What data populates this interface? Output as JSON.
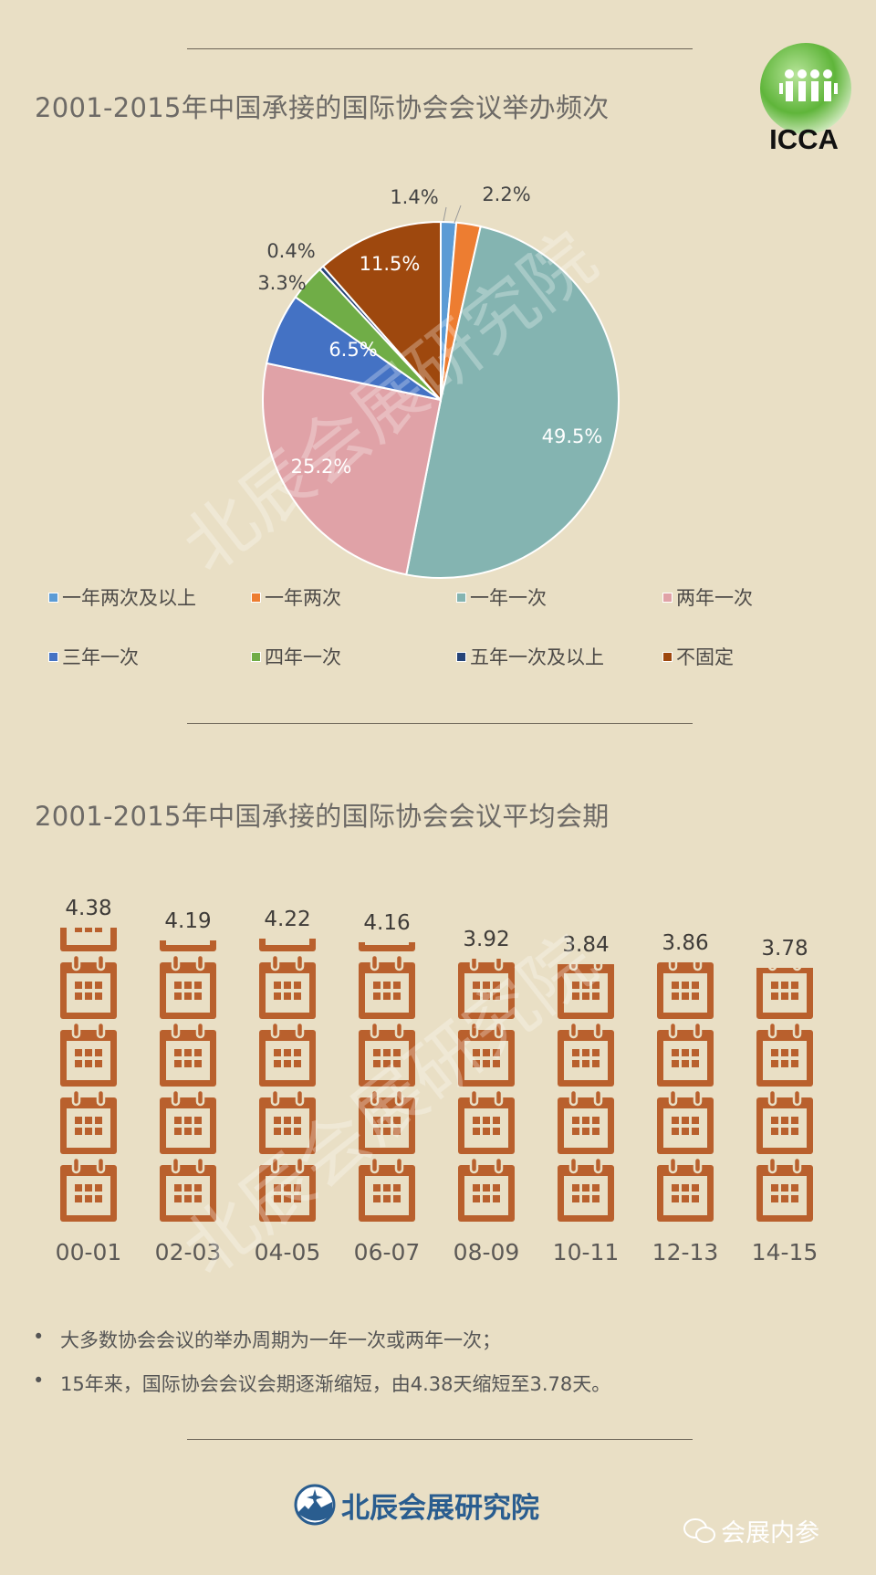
{
  "chart_data": [
    {
      "type": "pie",
      "title": "2001-2015年中国承接的国际协会会议举办频次",
      "start": "12 o'clock, clockwise",
      "slices": [
        {
          "label": "一年两次及以上",
          "value": 1.4,
          "display": "1.4%",
          "color": "#5b9bd5"
        },
        {
          "label": "一年两次",
          "value": 2.2,
          "display": "2.2%",
          "color": "#ed7d31"
        },
        {
          "label": "一年一次",
          "value": 49.5,
          "display": "49.5%",
          "color": "#84b4b1"
        },
        {
          "label": "两年一次",
          "value": 25.2,
          "display": "25.2%",
          "color": "#e0a2a7"
        },
        {
          "label": "三年一次",
          "value": 6.5,
          "display": "6.5%",
          "color": "#4472c4"
        },
        {
          "label": "四年一次",
          "value": 3.3,
          "display": "3.3%",
          "color": "#70ad47"
        },
        {
          "label": "五年一次及以上",
          "value": 0.4,
          "display": "0.4%",
          "color": "#264478"
        },
        {
          "label": "不固定",
          "value": 11.5,
          "display": "11.5%",
          "color": "#9e480e"
        }
      ],
      "legend_placement": "bottom"
    },
    {
      "type": "bar",
      "subtype": "pictogram (calendar icons, 1 icon = 1 day)",
      "title": "2001-2015年中国承接的国际协会会议平均会期",
      "categories": [
        "00-01",
        "02-03",
        "04-05",
        "06-07",
        "08-09",
        "10-11",
        "12-13",
        "14-15"
      ],
      "values": [
        4.38,
        4.19,
        4.22,
        4.16,
        3.92,
        3.84,
        3.86,
        3.78
      ],
      "value_labels": [
        "4.38",
        "4.19",
        "4.22",
        "4.16",
        "3.92",
        "3.84",
        "3.86",
        "3.78"
      ],
      "icon": "calendar-icon",
      "color": "#b9602d"
    }
  ],
  "logo": {
    "text": "ICCA",
    "color": "#5fb53a"
  },
  "notes": [
    "大多数协会会议的举办周期为一年一次或两年一次；",
    "15年来，国际协会会议会期逐渐缩短，由4.38天缩短至3.78天。"
  ],
  "bullet_char": "•",
  "footer": {
    "org": "北辰会展研究院",
    "wechat": "会展内参",
    "org_color": "#2a5d8f"
  },
  "watermark": "北辰会展研究院",
  "background": "#e9dfc5"
}
